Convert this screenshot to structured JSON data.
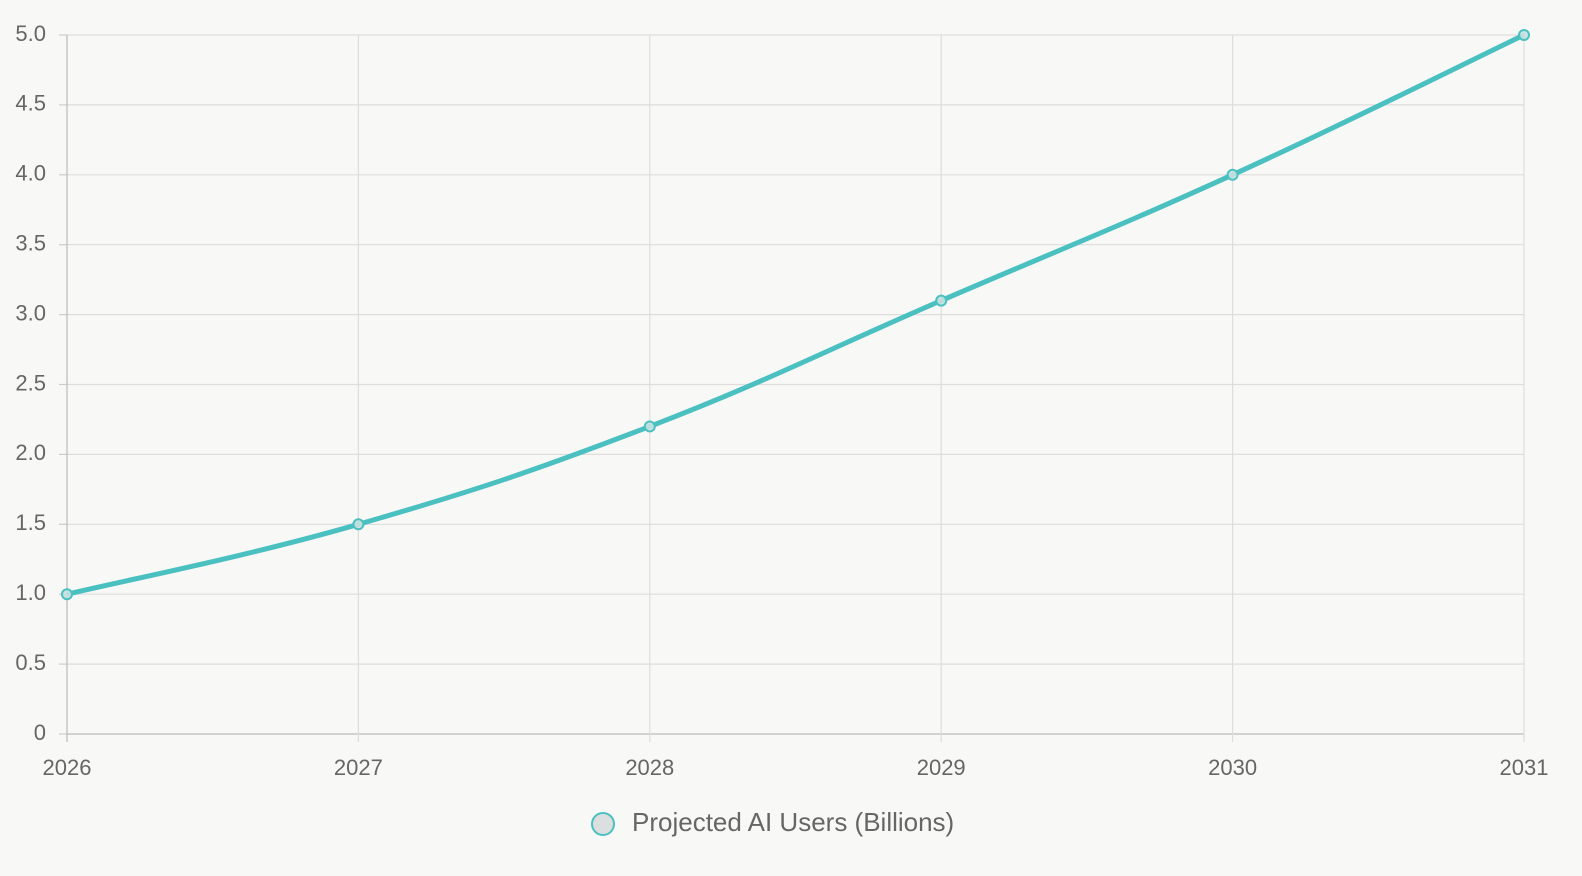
{
  "chart_data": {
    "type": "line",
    "categories": [
      "2026",
      "2027",
      "2028",
      "2029",
      "2030",
      "2031"
    ],
    "series": [
      {
        "name": "Projected AI Users (Billions)",
        "color": "#4bc0c0",
        "values": [
          1.0,
          1.5,
          2.2,
          3.1,
          4.0,
          5.0
        ]
      }
    ],
    "ylim": [
      0,
      5
    ],
    "yticks": [
      0,
      0.5,
      {
        "value": 1,
        "label": "1.0"
      },
      1.5,
      {
        "value": 2,
        "label": "2.0"
      },
      2.5,
      {
        "value": 3,
        "label": "3.0"
      },
      3.5,
      {
        "value": 4,
        "label": "4.0"
      },
      4.5,
      {
        "value": 5,
        "label": "5.0"
      }
    ],
    "grid": true,
    "legend": "bottom"
  }
}
